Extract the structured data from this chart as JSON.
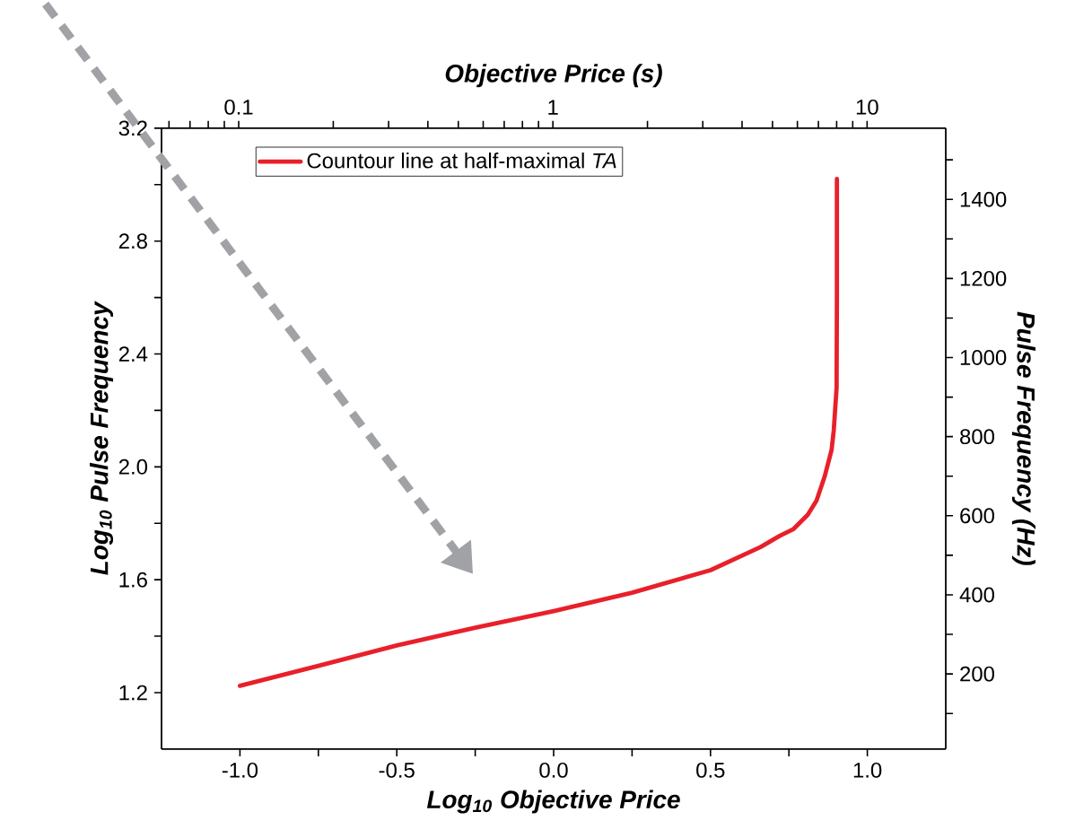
{
  "chart_data": {
    "type": "line",
    "xlabel": "Log$_{10}$ Objective Price",
    "ylabel": "Log$_{10}$ Pulse Frequency",
    "x2label": "Objective Price (s)",
    "y2label": "Pulse Frequency (Hz)",
    "xlim": [
      -1.25,
      1.25
    ],
    "ylim": [
      1.0,
      3.2
    ],
    "x2lim": [
      0.0568,
      17.8
    ],
    "y2lim": [
      10,
      1580
    ],
    "log": "x2",
    "xticks": [
      {
        "value": -1.0,
        "label": "-1.0"
      },
      {
        "value": -0.75,
        "label": null
      },
      {
        "value": -0.5,
        "label": "-0.5"
      },
      {
        "value": -0.25,
        "label": null
      },
      {
        "value": 0.0,
        "label": "0.0"
      },
      {
        "value": 0.25,
        "label": null
      },
      {
        "value": 0.5,
        "label": "0.5"
      },
      {
        "value": 0.75,
        "label": null
      },
      {
        "value": 1.0,
        "label": "1.0"
      }
    ],
    "yticks": [
      {
        "value": 1.2,
        "label": "1.2"
      },
      {
        "value": 1.4,
        "label": null
      },
      {
        "value": 1.6,
        "label": "1.6"
      },
      {
        "value": 1.8,
        "label": null
      },
      {
        "value": 2.0,
        "label": "2.0"
      },
      {
        "value": 2.2,
        "label": null
      },
      {
        "value": 2.4,
        "label": "2.4"
      },
      {
        "value": 2.6,
        "label": null
      },
      {
        "value": 2.8,
        "label": "2.8"
      },
      {
        "value": 3.0,
        "label": null
      },
      {
        "value": 3.2,
        "label": "3.2"
      }
    ],
    "x2ticks": [
      {
        "value": 0.06,
        "label": null
      },
      {
        "value": 0.07,
        "label": null
      },
      {
        "value": 0.08,
        "label": null
      },
      {
        "value": 0.09,
        "label": null
      },
      0.1,
      {
        "value": 0.2,
        "label": null
      },
      {
        "value": 0.3,
        "label": null
      },
      {
        "value": 0.4,
        "label": null
      },
      {
        "value": 0.5,
        "label": null
      },
      {
        "value": 0.6,
        "label": null
      },
      {
        "value": 0.7,
        "label": null
      },
      {
        "value": 0.8,
        "label": null
      },
      {
        "value": 0.9,
        "label": null
      },
      1,
      {
        "value": 2,
        "label": null
      },
      {
        "value": 3,
        "label": null
      },
      {
        "value": 4,
        "label": null
      },
      {
        "value": 5,
        "label": null
      },
      {
        "value": 6,
        "label": null
      },
      {
        "value": 7,
        "label": null
      },
      {
        "value": 8,
        "label": null
      },
      {
        "value": 9,
        "label": null
      },
      10
    ],
    "y2ticks": [
      {
        "value": 100,
        "label": null
      },
      200,
      {
        "value": 300,
        "label": null
      },
      400,
      {
        "value": 500,
        "label": null
      },
      600,
      {
        "value": 700,
        "label": null
      },
      800,
      {
        "value": 900,
        "label": null
      },
      1000,
      {
        "value": 1100,
        "label": null
      },
      1200,
      {
        "value": 1300,
        "label": null
      },
      1400,
      {
        "value": 1500,
        "label": null
      }
    ],
    "legend": "top left",
    "line_style": "solid",
    "series": [
      {
        "name": "Countour line at half-maximal *TA*",
        "color": "#e8202a",
        "x": [
          -1.0,
          -0.75,
          -0.5,
          -0.25,
          0.0,
          0.25,
          0.5,
          0.66,
          0.72,
          0.765,
          0.81,
          0.838,
          0.864,
          0.886,
          0.893,
          0.902,
          0.903,
          0.903
        ],
        "values": [
          1.224,
          1.295,
          1.367,
          1.43,
          1.489,
          1.554,
          1.634,
          1.716,
          1.755,
          1.78,
          1.83,
          1.88,
          1.966,
          2.06,
          2.13,
          2.28,
          2.6,
          3.02
        ]
      }
    ]
  }
}
